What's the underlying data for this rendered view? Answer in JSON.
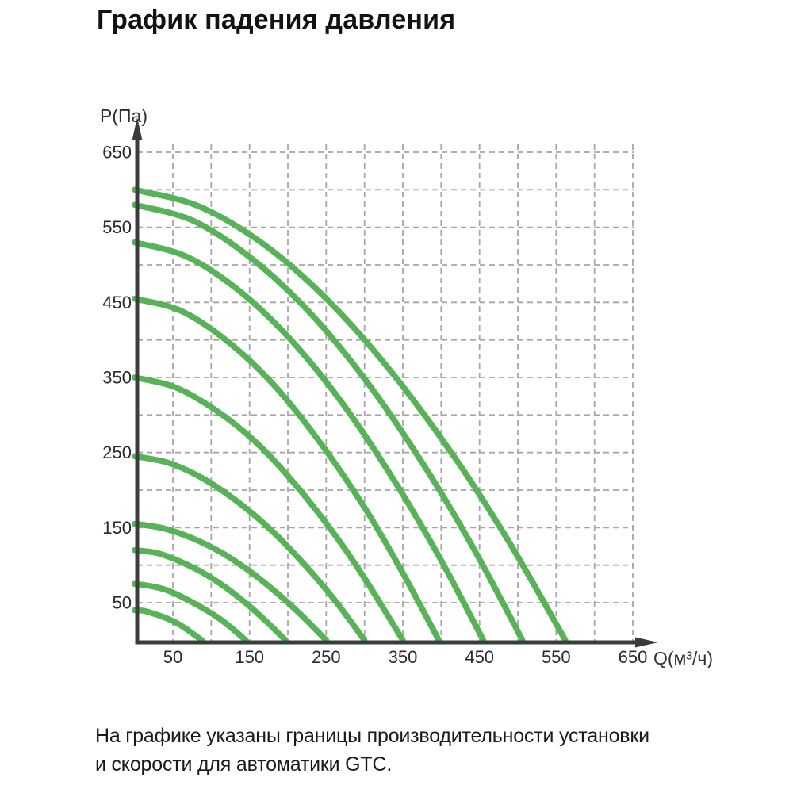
{
  "page": {
    "title": "График падения давления",
    "caption": [
      "На графике указаны границы производительности установки",
      "и скорости для автоматики GTC."
    ]
  },
  "chart_data": {
    "type": "line",
    "title": "График падения давления",
    "xlabel": "Q(м³/ч)",
    "ylabel": "P(Па)",
    "xlim": [
      0,
      650
    ],
    "ylim": [
      0,
      650
    ],
    "x_ticks": [
      50,
      150,
      250,
      350,
      450,
      550,
      650
    ],
    "y_ticks": [
      50,
      150,
      250,
      350,
      450,
      550,
      650
    ],
    "grid": {
      "visible": true,
      "style": "dashed",
      "step": 50
    },
    "legend": "none",
    "series_color": "#58b358",
    "axis_color": "#3c3c3c",
    "grid_color": "#a6a6a6",
    "series": [
      {
        "name": "curve-600",
        "points": [
          [
            0,
            600
          ],
          [
            84,
            578
          ],
          [
            169,
            527
          ],
          [
            253,
            452
          ],
          [
            337,
            355
          ],
          [
            422,
            237
          ],
          [
            492,
            125
          ],
          [
            562,
            0
          ]
        ]
      },
      {
        "name": "curve-580",
        "points": [
          [
            0,
            580
          ],
          [
            76,
            559
          ],
          [
            152,
            509
          ],
          [
            228,
            437
          ],
          [
            304,
            343
          ],
          [
            380,
            229
          ],
          [
            443,
            121
          ],
          [
            506,
            0
          ]
        ]
      },
      {
        "name": "curve-530",
        "points": [
          [
            0,
            530
          ],
          [
            68,
            511
          ],
          [
            137,
            465
          ],
          [
            205,
            399
          ],
          [
            273,
            313
          ],
          [
            341,
            209
          ],
          [
            398,
            110
          ],
          [
            455,
            0
          ]
        ]
      },
      {
        "name": "curve-455",
        "points": [
          [
            0,
            455
          ],
          [
            60,
            439
          ],
          [
            119,
            400
          ],
          [
            179,
            343
          ],
          [
            238,
            269
          ],
          [
            298,
            180
          ],
          [
            347,
            95
          ],
          [
            397,
            0
          ]
        ]
      },
      {
        "name": "curve-350",
        "points": [
          [
            0,
            350
          ],
          [
            53,
            337
          ],
          [
            105,
            307
          ],
          [
            158,
            264
          ],
          [
            210,
            207
          ],
          [
            263,
            138
          ],
          [
            306,
            73
          ],
          [
            350,
            0
          ]
        ]
      },
      {
        "name": "curve-245",
        "points": [
          [
            0,
            245
          ],
          [
            45,
            236
          ],
          [
            90,
            215
          ],
          [
            135,
            184
          ],
          [
            180,
            145
          ],
          [
            225,
            97
          ],
          [
            263,
            51
          ],
          [
            300,
            0
          ]
        ]
      },
      {
        "name": "curve-155",
        "points": [
          [
            0,
            155
          ],
          [
            38,
            149
          ],
          [
            75,
            136
          ],
          [
            113,
            117
          ],
          [
            150,
            92
          ],
          [
            188,
            61
          ],
          [
            219,
            32
          ],
          [
            250,
            0
          ]
        ]
      },
      {
        "name": "curve-120",
        "points": [
          [
            0,
            120
          ],
          [
            30,
            116
          ],
          [
            59,
            105
          ],
          [
            89,
            90
          ],
          [
            118,
            71
          ],
          [
            148,
            47
          ],
          [
            172,
            25
          ],
          [
            197,
            0
          ]
        ]
      },
      {
        "name": "curve-75",
        "points": [
          [
            0,
            75
          ],
          [
            22,
            72
          ],
          [
            44,
            66
          ],
          [
            65,
            56
          ],
          [
            87,
            44
          ],
          [
            109,
            30
          ],
          [
            127,
            16
          ],
          [
            145,
            0
          ]
        ]
      },
      {
        "name": "curve-40",
        "points": [
          [
            0,
            40
          ],
          [
            13,
            39
          ],
          [
            26,
            35
          ],
          [
            40,
            30
          ],
          [
            53,
            24
          ],
          [
            66,
            16
          ],
          [
            77,
            8
          ],
          [
            88,
            0
          ]
        ]
      }
    ]
  }
}
